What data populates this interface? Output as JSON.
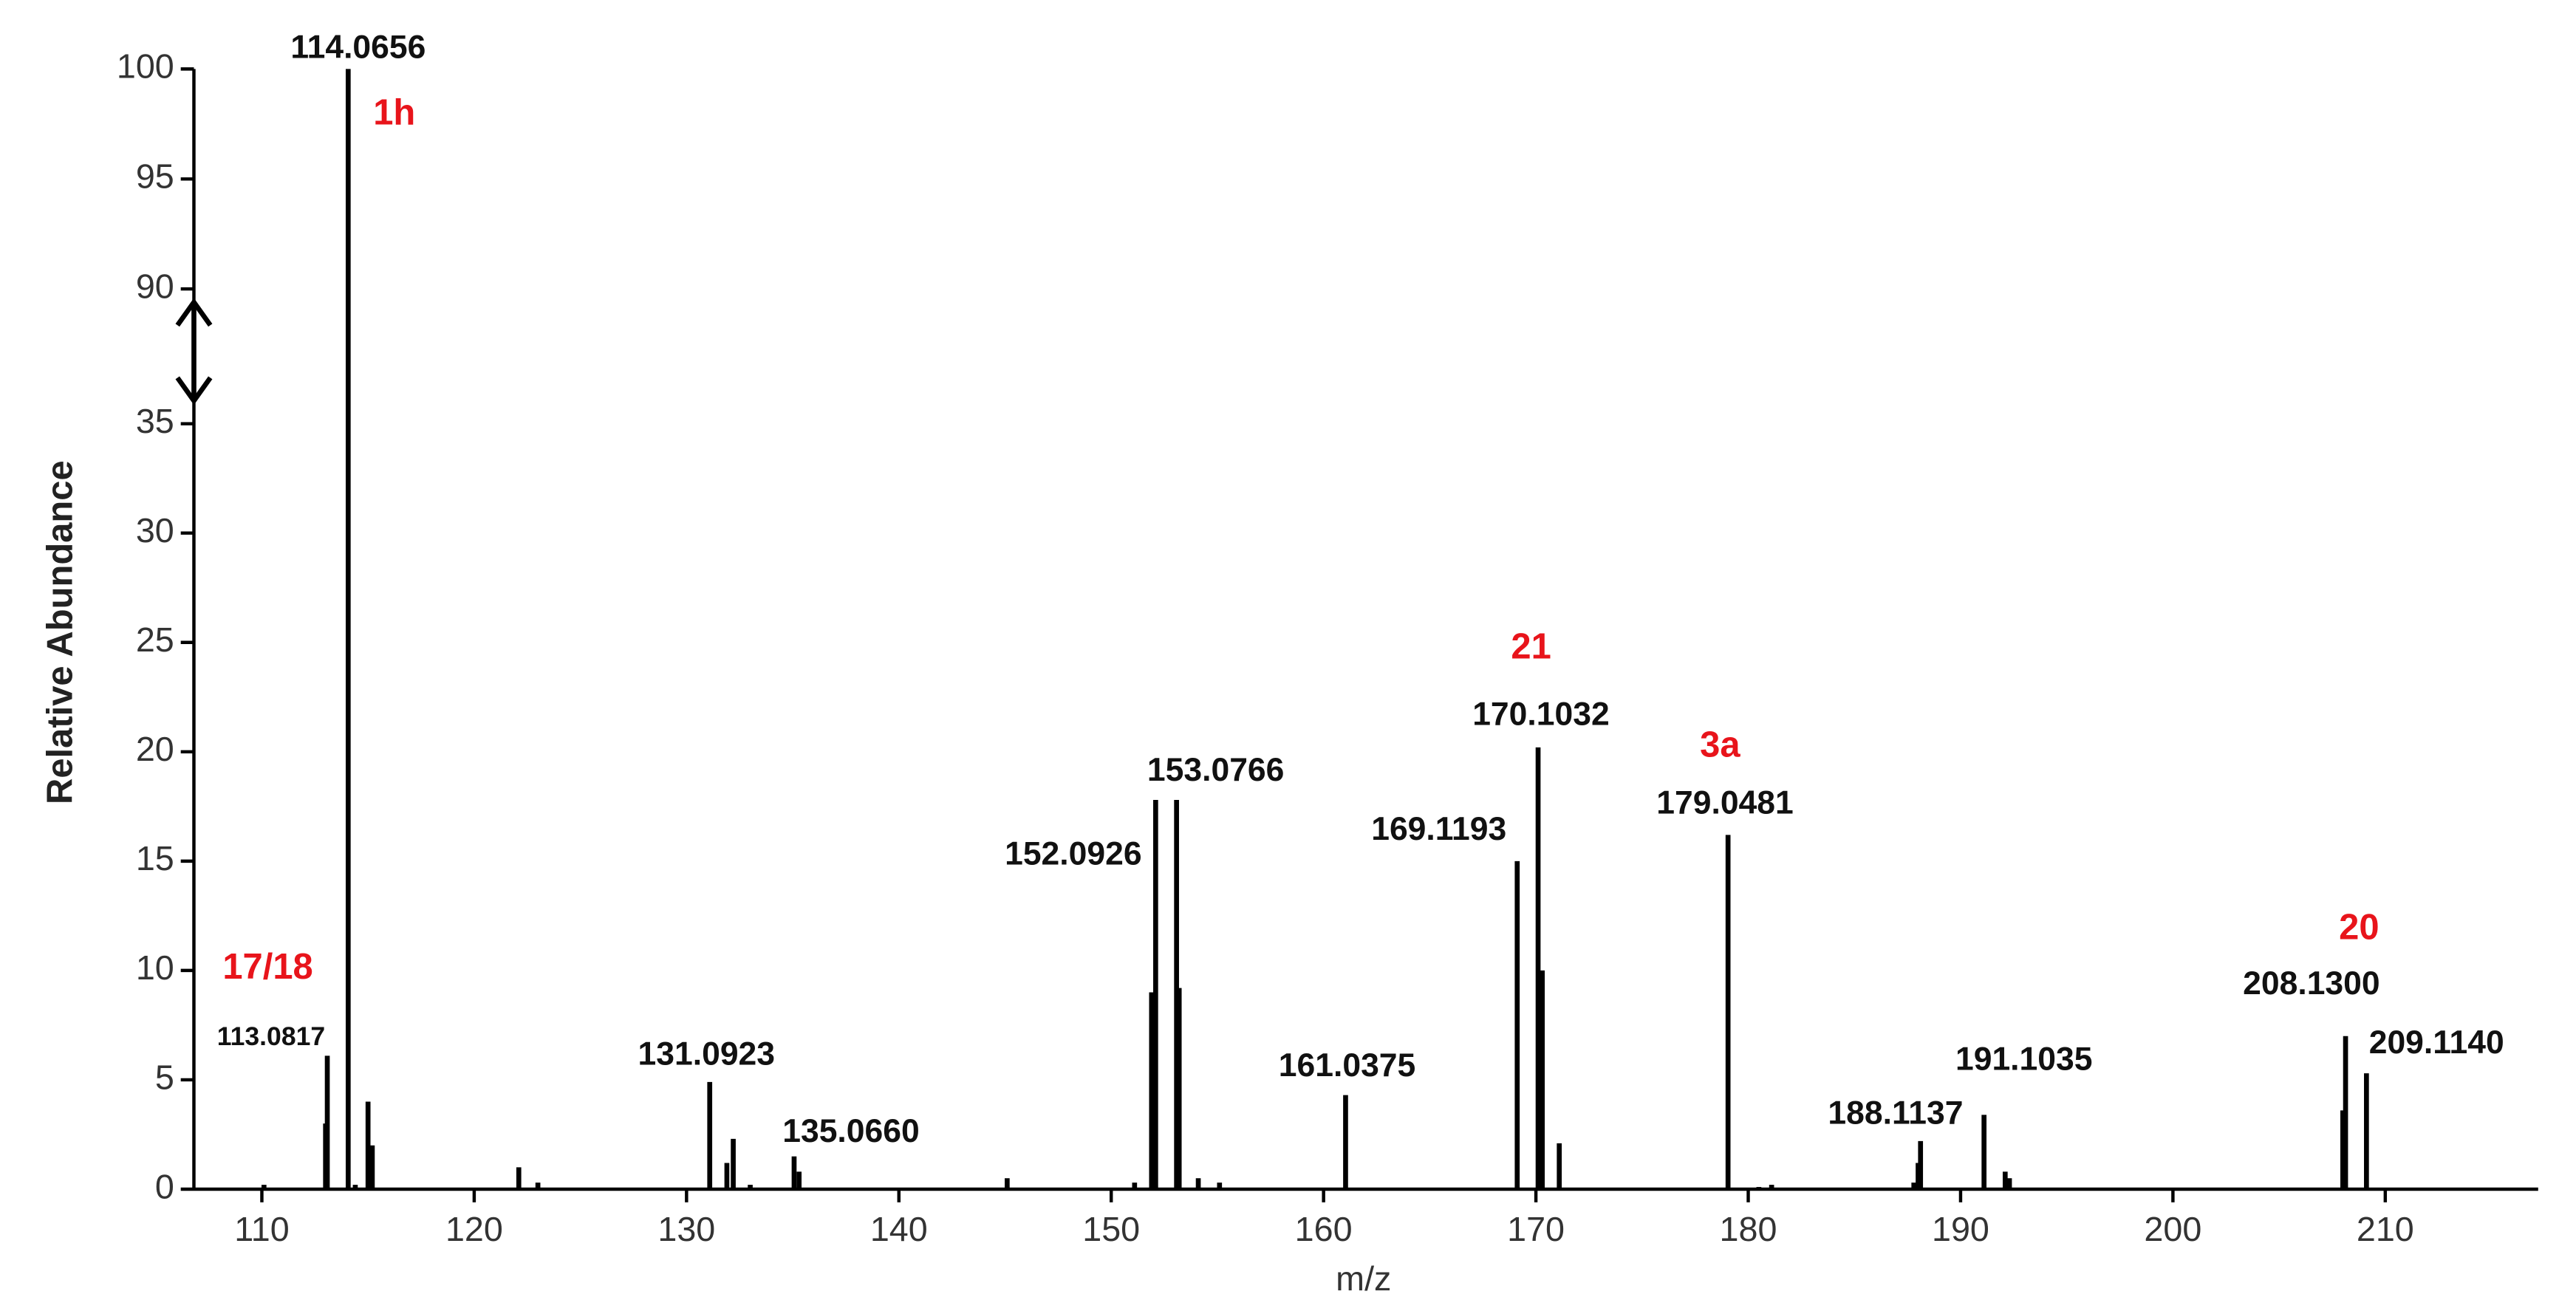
{
  "chart_data": {
    "type": "spectrum",
    "xlabel": "m/z",
    "ylabel": "Relative Abundance",
    "x": [
      110.1,
      113.0,
      113.0817,
      114.0656,
      114.4,
      115.0,
      115.2,
      122.1,
      123.0,
      131.0923,
      131.9,
      132.2,
      133.0,
      135.066,
      135.3,
      145.1,
      151.1,
      151.9,
      152.0926,
      153.0766,
      153.2,
      154.1,
      155.1,
      161.0375,
      169.1193,
      170.1032,
      170.3,
      171.1,
      179.0481,
      180.5,
      181.1,
      187.8,
      188.0,
      188.1137,
      191.1035,
      192.1,
      192.3,
      208.0,
      208.13,
      209.114
    ],
    "values": [
      0.2,
      3.0,
      6.1,
      100,
      0.2,
      4.0,
      2.0,
      1.0,
      0.3,
      4.9,
      1.2,
      2.3,
      0.2,
      1.5,
      0.8,
      0.5,
      0.3,
      9.0,
      17.8,
      17.8,
      9.2,
      0.5,
      0.3,
      4.3,
      15.0,
      20.2,
      10.0,
      2.1,
      16.2,
      0.1,
      0.2,
      0.3,
      1.2,
      2.2,
      3.4,
      0.8,
      0.5,
      3.6,
      7.0,
      5.3
    ],
    "point_labels": [
      null,
      null,
      "113.0817",
      "114.0656",
      null,
      null,
      null,
      null,
      null,
      "131.0923",
      null,
      null,
      null,
      "135.0660",
      null,
      null,
      null,
      null,
      "152.0926",
      "153.0766",
      null,
      null,
      null,
      "161.0375",
      "169.1193",
      "170.1032",
      null,
      null,
      "179.0481",
      null,
      null,
      null,
      null,
      "188.1137",
      "191.1035",
      null,
      null,
      null,
      "208.1300",
      "209.1140"
    ],
    "compound_labels": [
      null,
      null,
      "17/18",
      "1h",
      null,
      null,
      null,
      null,
      null,
      null,
      null,
      null,
      null,
      null,
      null,
      null,
      null,
      null,
      null,
      null,
      null,
      null,
      null,
      null,
      null,
      "21",
      null,
      null,
      "3a",
      null,
      null,
      null,
      null,
      null,
      null,
      null,
      null,
      null,
      "20",
      null
    ],
    "color": "#000000",
    "label_color": "#e8141b",
    "xlim": [
      106.8,
      217.2
    ],
    "xticks": [
      110,
      120,
      130,
      140,
      150,
      160,
      170,
      180,
      190,
      200,
      210
    ],
    "ylim": [
      0,
      100
    ],
    "y_break": [
      36.5,
      88.5
    ],
    "yticks": [
      0,
      5,
      10,
      15,
      20,
      25,
      30,
      35,
      90,
      95,
      100
    ]
  }
}
